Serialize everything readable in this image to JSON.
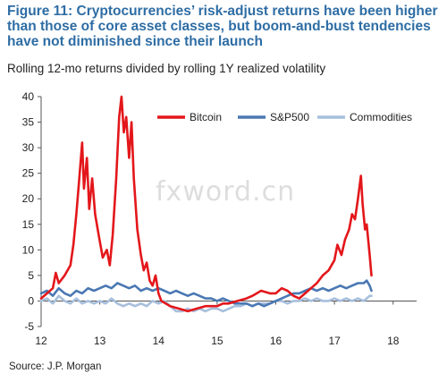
{
  "figure": {
    "title_lines": [
      "Figure 11: Cryptocurrencies’ risk-adjust returns have been higher",
      "than those of core asset classes, but boom-and-bust tendencies",
      "have not diminished since their launch"
    ],
    "subtitle": "Rolling 12-mo returns divided by rolling 1Y realized volatility",
    "source": "Source: J.P. Morgan",
    "watermark": "fxword.cn"
  },
  "chart_data": {
    "type": "line",
    "xlim": [
      12,
      18.4
    ],
    "ylim": [
      -5,
      40
    ],
    "x_ticks": [
      12,
      13,
      14,
      15,
      16,
      17,
      18
    ],
    "x_tick_labels": [
      "12",
      "13",
      "14",
      "15",
      "16",
      "17",
      "18"
    ],
    "y_ticks": [
      -5,
      0,
      5,
      10,
      15,
      20,
      25,
      30,
      35,
      40
    ],
    "y_tick_labels": [
      "-5",
      "0",
      "5",
      "10",
      "15",
      "20",
      "25",
      "30",
      "35",
      "40"
    ],
    "grid": false,
    "legend_position": "top-right",
    "series": [
      {
        "name": "Bitcoin",
        "color": "#e3171b",
        "points": [
          [
            12.0,
            0.5
          ],
          [
            12.1,
            1.5
          ],
          [
            12.2,
            2.5
          ],
          [
            12.25,
            5.5
          ],
          [
            12.3,
            3.5
          ],
          [
            12.4,
            5.0
          ],
          [
            12.5,
            7.0
          ],
          [
            12.55,
            11.0
          ],
          [
            12.6,
            17.0
          ],
          [
            12.65,
            24.0
          ],
          [
            12.7,
            31.0
          ],
          [
            12.73,
            22.0
          ],
          [
            12.78,
            28.0
          ],
          [
            12.82,
            18.0
          ],
          [
            12.87,
            24.0
          ],
          [
            12.92,
            17.0
          ],
          [
            12.98,
            13.0
          ],
          [
            13.05,
            8.5
          ],
          [
            13.12,
            10.0
          ],
          [
            13.17,
            7.0
          ],
          [
            13.22,
            13.0
          ],
          [
            13.28,
            24.0
          ],
          [
            13.33,
            36.0
          ],
          [
            13.37,
            40.0
          ],
          [
            13.41,
            33.0
          ],
          [
            13.45,
            36.0
          ],
          [
            13.5,
            28.0
          ],
          [
            13.54,
            35.0
          ],
          [
            13.58,
            24.0
          ],
          [
            13.64,
            14.0
          ],
          [
            13.7,
            9.0
          ],
          [
            13.75,
            6.0
          ],
          [
            13.8,
            7.5
          ],
          [
            13.85,
            4.0
          ],
          [
            13.9,
            3.0
          ],
          [
            13.95,
            5.0
          ],
          [
            14.0,
            1.5
          ],
          [
            14.05,
            0.0
          ],
          [
            14.2,
            -1.0
          ],
          [
            14.35,
            -1.5
          ],
          [
            14.5,
            -2.0
          ],
          [
            14.65,
            -1.5
          ],
          [
            14.8,
            -1.0
          ],
          [
            15.0,
            -1.0
          ],
          [
            15.1,
            -0.5
          ],
          [
            15.2,
            -0.5
          ],
          [
            15.35,
            0.0
          ],
          [
            15.5,
            0.5
          ],
          [
            15.6,
            1.0
          ],
          [
            15.75,
            2.0
          ],
          [
            15.9,
            1.5
          ],
          [
            16.0,
            1.5
          ],
          [
            16.1,
            2.5
          ],
          [
            16.2,
            2.0
          ],
          [
            16.3,
            1.0
          ],
          [
            16.4,
            0.5
          ],
          [
            16.5,
            1.5
          ],
          [
            16.6,
            2.5
          ],
          [
            16.7,
            3.5
          ],
          [
            16.8,
            5.0
          ],
          [
            16.9,
            6.0
          ],
          [
            17.0,
            8.0
          ],
          [
            17.05,
            11.0
          ],
          [
            17.12,
            9.0
          ],
          [
            17.18,
            12.0
          ],
          [
            17.25,
            14.0
          ],
          [
            17.3,
            17.0
          ],
          [
            17.35,
            16.0
          ],
          [
            17.4,
            20.0
          ],
          [
            17.45,
            24.5
          ],
          [
            17.48,
            19.0
          ],
          [
            17.52,
            14.0
          ],
          [
            17.55,
            15.0
          ],
          [
            17.6,
            9.0
          ],
          [
            17.63,
            5.0
          ]
        ]
      },
      {
        "name": "S&P500",
        "color": "#4a78b3",
        "points": [
          [
            12.0,
            1.5
          ],
          [
            12.1,
            2.0
          ],
          [
            12.2,
            1.0
          ],
          [
            12.3,
            2.5
          ],
          [
            12.4,
            1.5
          ],
          [
            12.5,
            1.0
          ],
          [
            12.6,
            2.0
          ],
          [
            12.7,
            1.5
          ],
          [
            12.8,
            2.5
          ],
          [
            12.9,
            2.0
          ],
          [
            13.0,
            2.5
          ],
          [
            13.1,
            3.0
          ],
          [
            13.2,
            2.5
          ],
          [
            13.3,
            3.5
          ],
          [
            13.4,
            3.0
          ],
          [
            13.5,
            2.5
          ],
          [
            13.6,
            3.0
          ],
          [
            13.7,
            2.0
          ],
          [
            13.8,
            2.5
          ],
          [
            13.9,
            2.0
          ],
          [
            14.0,
            2.5
          ],
          [
            14.1,
            2.0
          ],
          [
            14.2,
            1.5
          ],
          [
            14.3,
            2.0
          ],
          [
            14.4,
            1.5
          ],
          [
            14.5,
            1.0
          ],
          [
            14.6,
            1.5
          ],
          [
            14.7,
            1.0
          ],
          [
            14.8,
            0.5
          ],
          [
            14.9,
            0.5
          ],
          [
            15.0,
            0.0
          ],
          [
            15.1,
            0.5
          ],
          [
            15.2,
            0.0
          ],
          [
            15.3,
            -0.5
          ],
          [
            15.4,
            -0.5
          ],
          [
            15.5,
            -0.5
          ],
          [
            15.6,
            -1.0
          ],
          [
            15.7,
            -0.5
          ],
          [
            15.8,
            -1.0
          ],
          [
            15.9,
            -0.5
          ],
          [
            16.0,
            0.0
          ],
          [
            16.1,
            0.5
          ],
          [
            16.2,
            1.0
          ],
          [
            16.3,
            1.5
          ],
          [
            16.4,
            1.5
          ],
          [
            16.5,
            2.0
          ],
          [
            16.6,
            2.5
          ],
          [
            16.7,
            2.0
          ],
          [
            16.8,
            2.5
          ],
          [
            16.9,
            2.0
          ],
          [
            17.0,
            2.5
          ],
          [
            17.1,
            3.0
          ],
          [
            17.2,
            2.5
          ],
          [
            17.3,
            3.0
          ],
          [
            17.4,
            3.5
          ],
          [
            17.5,
            3.5
          ],
          [
            17.55,
            4.0
          ],
          [
            17.6,
            3.0
          ],
          [
            17.63,
            2.0
          ]
        ]
      },
      {
        "name": "Commodities",
        "color": "#a7bfdc",
        "points": [
          [
            12.0,
            0.0
          ],
          [
            12.1,
            0.5
          ],
          [
            12.2,
            -0.5
          ],
          [
            12.3,
            1.0
          ],
          [
            12.4,
            0.0
          ],
          [
            12.5,
            -0.5
          ],
          [
            12.6,
            0.5
          ],
          [
            12.7,
            -0.5
          ],
          [
            12.8,
            0.0
          ],
          [
            12.9,
            -0.5
          ],
          [
            13.0,
            0.0
          ],
          [
            13.1,
            -0.5
          ],
          [
            13.2,
            0.5
          ],
          [
            13.3,
            -0.5
          ],
          [
            13.4,
            -1.0
          ],
          [
            13.5,
            -0.5
          ],
          [
            13.6,
            -1.0
          ],
          [
            13.7,
            -0.5
          ],
          [
            13.8,
            -1.0
          ],
          [
            13.9,
            0.0
          ],
          [
            14.0,
            -0.5
          ],
          [
            14.1,
            0.0
          ],
          [
            14.2,
            -1.0
          ],
          [
            14.3,
            -2.0
          ],
          [
            14.4,
            -2.0
          ],
          [
            14.5,
            -1.5
          ],
          [
            14.6,
            -2.0
          ],
          [
            14.7,
            -1.5
          ],
          [
            14.8,
            -2.0
          ],
          [
            14.9,
            -1.5
          ],
          [
            15.0,
            -1.5
          ],
          [
            15.1,
            -2.0
          ],
          [
            15.2,
            -1.5
          ],
          [
            15.3,
            -1.0
          ],
          [
            15.4,
            -1.0
          ],
          [
            15.5,
            -0.5
          ],
          [
            15.6,
            -1.0
          ],
          [
            15.7,
            -0.5
          ],
          [
            15.8,
            -0.5
          ],
          [
            15.9,
            -0.5
          ],
          [
            16.0,
            0.0
          ],
          [
            16.1,
            0.0
          ],
          [
            16.2,
            -0.5
          ],
          [
            16.3,
            0.0
          ],
          [
            16.4,
            0.0
          ],
          [
            16.5,
            0.5
          ],
          [
            16.6,
            0.0
          ],
          [
            16.7,
            0.5
          ],
          [
            16.8,
            0.0
          ],
          [
            16.9,
            0.0
          ],
          [
            17.0,
            0.5
          ],
          [
            17.1,
            0.0
          ],
          [
            17.2,
            0.5
          ],
          [
            17.3,
            0.0
          ],
          [
            17.4,
            0.5
          ],
          [
            17.5,
            0.0
          ],
          [
            17.55,
            0.5
          ],
          [
            17.6,
            1.0
          ],
          [
            17.63,
            1.0
          ]
        ]
      }
    ]
  }
}
